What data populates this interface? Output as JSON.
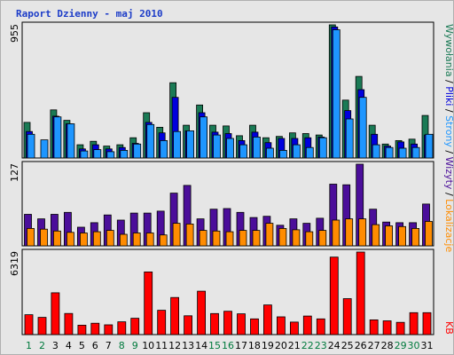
{
  "chart_data": {
    "type": "bar",
    "title": "Raport Dzienny -  maj 2010",
    "days": [
      "1",
      "2",
      "3",
      "4",
      "5",
      "6",
      "7",
      "8",
      "9",
      "10",
      "11",
      "12",
      "13",
      "14",
      "15",
      "16",
      "17",
      "18",
      "19",
      "20",
      "21",
      "22",
      "23",
      "24",
      "25",
      "26",
      "27",
      "28",
      "29",
      "30",
      "31"
    ],
    "weekend_days": [
      "1",
      "2",
      "8",
      "9",
      "15",
      "16",
      "22",
      "23",
      "29",
      "30"
    ],
    "panels": [
      {
        "name": "top",
        "scale_label": "955",
        "ymax": 955,
        "series": [
          {
            "name": "Wywołania",
            "color": "#1a7a55",
            "values": [
              255,
              0,
              345,
              270,
              95,
              120,
              85,
              95,
              145,
              325,
              220,
              540,
              235,
              380,
              235,
              230,
              160,
              235,
              145,
              155,
              180,
              175,
              165,
              955,
              415,
              585,
              235,
              100,
              125,
              135,
              305
            ]
          },
          {
            "name": "Pliki",
            "color": "#0000dd",
            "values": [
              190,
              0,
              300,
              245,
              65,
              95,
              65,
              75,
              105,
              255,
              180,
              435,
              195,
              325,
              185,
              175,
              125,
              185,
              110,
              140,
              140,
              145,
              150,
              940,
              340,
              490,
              170,
              85,
              115,
              100,
              165
            ]
          },
          {
            "name": "Strony",
            "color": "#1e96ff",
            "values": [
              170,
              130,
              295,
              245,
              50,
              60,
              45,
              55,
              100,
              240,
              125,
              190,
              195,
              295,
              165,
              140,
              95,
              150,
              70,
              55,
              95,
              75,
              145,
              920,
              280,
              435,
              95,
              75,
              70,
              75,
              170
            ]
          }
        ]
      },
      {
        "name": "middle",
        "scale_label": "127",
        "ymax": 127,
        "series": [
          {
            "name": "Wizyty",
            "color": "#4b0e9a",
            "values": [
              49,
              42,
              49,
              52,
              29,
              36,
              48,
              40,
              51,
              51,
              54,
              82,
              94,
              42,
              57,
              58,
              52,
              44,
              46,
              32,
              42,
              35,
              43,
              96,
              95,
              127,
              57,
              37,
              36,
              36,
              65
            ]
          },
          {
            "name": "Lokalizacje",
            "color": "#ff8c00",
            "values": [
              27,
              26,
              23,
              21,
              20,
              22,
              24,
              18,
              20,
              20,
              17,
              35,
              34,
              24,
              23,
              22,
              24,
              24,
              35,
              27,
              25,
              22,
              24,
              40,
              42,
              42,
              33,
              31,
              30,
              27,
              38
            ]
          }
        ]
      },
      {
        "name": "bottom",
        "scale_label": "6319",
        "ymax": 6319,
        "series": [
          {
            "name": "KB",
            "color": "#ff0000",
            "values": [
              1520,
              1320,
              3200,
              1620,
              720,
              870,
              750,
              980,
              1250,
              4800,
              1860,
              2840,
              1440,
              3320,
              1610,
              1790,
              1590,
              1200,
              2270,
              1360,
              960,
              1420,
              1200,
              5930,
              2750,
              6319,
              1130,
              1050,
              940,
              1680,
              1680
            ]
          }
        ]
      }
    ],
    "right_legend": {
      "line1": [
        {
          "text": "Wywołania",
          "color": "#1a7a55"
        },
        {
          "text": " / ",
          "color": "#000000"
        },
        {
          "text": "Pliki",
          "color": "#0000dd"
        },
        {
          "text": " / ",
          "color": "#000000"
        },
        {
          "text": "Strony",
          "color": "#1e96ff"
        },
        {
          "text": " / ",
          "color": "#000000"
        },
        {
          "text": "Wizyty",
          "color": "#4b0e9a"
        },
        {
          "text": " / ",
          "color": "#000000"
        },
        {
          "text": "Lokalizacje",
          "color": "#ff8c00"
        }
      ],
      "kb": {
        "text": "KB",
        "color": "#ff0000"
      }
    },
    "colors": {
      "title": "#1c3cc8",
      "weekday_label": "#000000",
      "weekend_label": "#007a3d",
      "frame": "#b0b0b0",
      "panel_bg": "#e6e6e6",
      "bar_outline": "#000000"
    }
  }
}
